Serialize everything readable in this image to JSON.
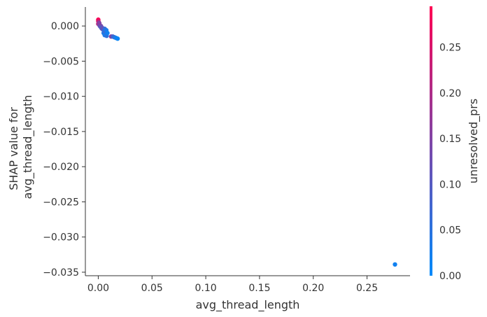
{
  "chart_data": {
    "type": "scatter",
    "xlabel": "avg_thread_length",
    "ylabel_lines": [
      "SHAP value for",
      "avg_thread_length"
    ],
    "xlim": [
      -0.012,
      0.29
    ],
    "ylim": [
      -0.0355,
      0.0027
    ],
    "x_ticks": [
      0.0,
      0.05,
      0.1,
      0.15,
      0.2,
      0.25
    ],
    "x_tick_labels": [
      "0.00",
      "0.05",
      "0.10",
      "0.15",
      "0.20",
      "0.25"
    ],
    "y_ticks": [
      0.0,
      -0.005,
      -0.01,
      -0.015,
      -0.02,
      -0.025,
      -0.03,
      -0.035
    ],
    "y_tick_labels": [
      "0.000",
      "−0.005",
      "−0.010",
      "−0.015",
      "−0.020",
      "−0.025",
      "−0.030",
      "−0.035"
    ],
    "grid": false,
    "colorbar": {
      "label": "unresolved_prs",
      "range": [
        0.0,
        0.295
      ],
      "ticks": [
        0.0,
        0.05,
        0.1,
        0.15,
        0.2,
        0.25
      ],
      "tick_labels": [
        "0.00",
        "0.05",
        "0.10",
        "0.15",
        "0.20",
        "0.25"
      ],
      "colors": [
        "#008afb",
        "#ff0052"
      ]
    },
    "points": [
      {
        "x": 0.0,
        "y": 0.0009,
        "c": 0.29
      },
      {
        "x": 0.0,
        "y": 0.0007,
        "c": 0.27
      },
      {
        "x": 0.0003,
        "y": 0.0006,
        "c": 0.24
      },
      {
        "x": 0.0005,
        "y": 0.0005,
        "c": 0.2
      },
      {
        "x": 0.0,
        "y": 0.0003,
        "c": 0.22
      },
      {
        "x": 0.0008,
        "y": 0.0002,
        "c": 0.18
      },
      {
        "x": 0.001,
        "y": 0.0004,
        "c": 0.15
      },
      {
        "x": 0.0012,
        "y": 0.0001,
        "c": 0.16
      },
      {
        "x": 0.0015,
        "y": 0.0,
        "c": 0.12
      },
      {
        "x": 0.002,
        "y": -0.0001,
        "c": 0.1
      },
      {
        "x": 0.0025,
        "y": 0.0,
        "c": 0.14
      },
      {
        "x": 0.003,
        "y": -0.0002,
        "c": 0.11
      },
      {
        "x": 0.003,
        "y": -0.0003,
        "c": 0.09
      },
      {
        "x": 0.0035,
        "y": -0.0004,
        "c": 0.08
      },
      {
        "x": 0.004,
        "y": -0.0003,
        "c": 0.12
      },
      {
        "x": 0.0045,
        "y": -0.0005,
        "c": 0.13
      },
      {
        "x": 0.005,
        "y": -0.0006,
        "c": 0.1
      },
      {
        "x": 0.006,
        "y": -0.0004,
        "c": 0.06
      },
      {
        "x": 0.0055,
        "y": -0.0008,
        "c": 0.05
      },
      {
        "x": 0.005,
        "y": -0.001,
        "c": 0.04
      },
      {
        "x": 0.0065,
        "y": -0.0009,
        "c": 0.07
      },
      {
        "x": 0.007,
        "y": -0.0012,
        "c": 0.04
      },
      {
        "x": 0.006,
        "y": -0.0013,
        "c": 0.03
      },
      {
        "x": 0.0075,
        "y": -0.0006,
        "c": 0.03
      },
      {
        "x": 0.0078,
        "y": -0.0014,
        "c": 0.05
      },
      {
        "x": 0.0085,
        "y": -0.001,
        "c": 0.02
      },
      {
        "x": 0.012,
        "y": -0.0015,
        "c": 0.16
      },
      {
        "x": 0.0135,
        "y": -0.0015,
        "c": 0.08
      },
      {
        "x": 0.015,
        "y": -0.0016,
        "c": 0.05
      },
      {
        "x": 0.0165,
        "y": -0.0017,
        "c": 0.02
      },
      {
        "x": 0.018,
        "y": -0.0018,
        "c": 0.01
      },
      {
        "x": 0.276,
        "y": -0.0339,
        "c": 0.02
      }
    ]
  }
}
